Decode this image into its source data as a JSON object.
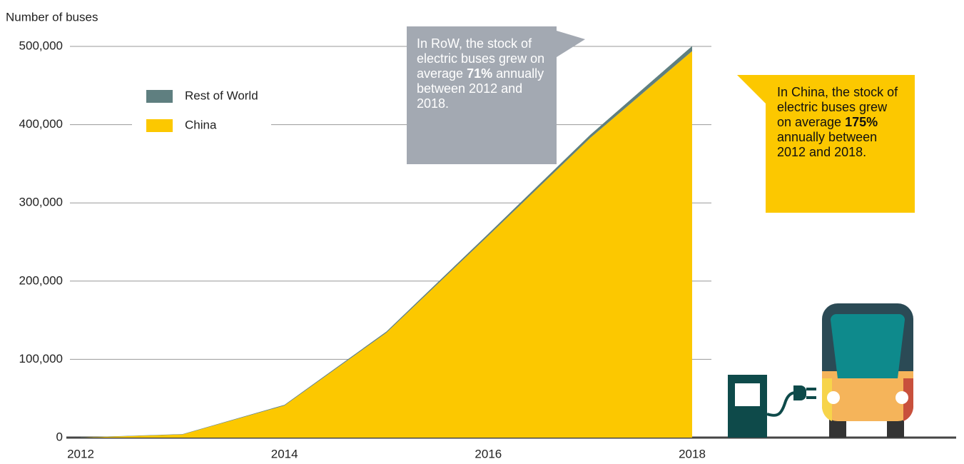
{
  "chart_data": {
    "type": "stacked_area",
    "y_axis_label": "Number of buses",
    "x": [
      2012,
      2013,
      2014,
      2015,
      2016,
      2017,
      2018
    ],
    "series": [
      {
        "name": "Rest of World",
        "color": "#5f7f80",
        "values": [
          300,
          500,
          900,
          1500,
          2500,
          4000,
          6500
        ]
      },
      {
        "name": "China",
        "color": "#fcc800",
        "values": [
          0,
          4000,
          41000,
          134000,
          258000,
          383000,
          494000
        ]
      }
    ],
    "xlim": [
      2012,
      2018
    ],
    "xticks": [
      2012,
      2014,
      2016,
      2018
    ],
    "ylim": [
      0,
      500000
    ],
    "yticks": [
      0,
      {
        "value": 100000,
        "label": "100,000"
      },
      {
        "value": 200000,
        "label": "200,000"
      },
      {
        "value": 300000,
        "label": "300,000"
      },
      {
        "value": 400000,
        "label": "400,000"
      },
      {
        "value": 500000,
        "label": "500,000"
      }
    ],
    "grid": true,
    "annotations": [
      {
        "color": "#a3a9b2",
        "text": [
          "In RoW, the stock of electric buses grew on average ",
          "71%",
          " annually between 2012 and 2018."
        ]
      },
      {
        "color": "#fcc800",
        "text": [
          "In China, the stock of electric buses grew on average ",
          "175%",
          " annually between 2012 and 2018."
        ]
      }
    ]
  }
}
